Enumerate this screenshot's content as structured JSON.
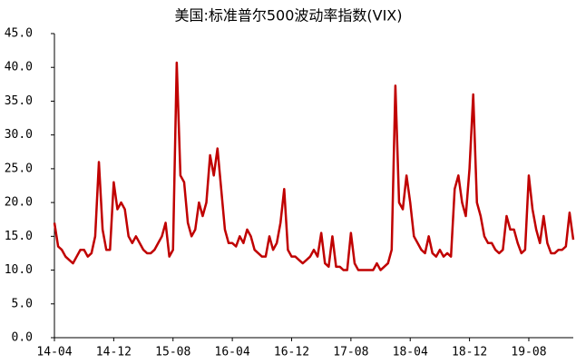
{
  "chart_data": {
    "type": "line",
    "title": "美国:标准普尔500波动率指数(VIX)",
    "categories": [
      "14-04",
      null,
      null,
      null,
      null,
      null,
      null,
      null,
      null,
      null,
      null,
      null,
      null,
      null,
      null,
      null,
      "14-12",
      null,
      null,
      null,
      null,
      null,
      null,
      null,
      null,
      null,
      null,
      null,
      null,
      null,
      null,
      null,
      "15-08",
      null,
      null,
      null,
      null,
      null,
      null,
      null,
      null,
      null,
      null,
      null,
      null,
      null,
      null,
      null,
      "16-04",
      null,
      null,
      null,
      null,
      null,
      null,
      null,
      null,
      null,
      null,
      null,
      null,
      null,
      null,
      null,
      "16-12",
      null,
      null,
      null,
      null,
      null,
      null,
      null,
      null,
      null,
      null,
      null,
      null,
      null,
      null,
      null,
      "17-08",
      null,
      null,
      null,
      null,
      null,
      null,
      null,
      null,
      null,
      null,
      null,
      null,
      null,
      null,
      null,
      "18-04",
      null,
      null,
      null,
      null,
      null,
      null,
      null,
      null,
      null,
      null,
      null,
      null,
      null,
      null,
      null,
      "18-12",
      null,
      null,
      null,
      null,
      null,
      null,
      null,
      null,
      null,
      null,
      null,
      null,
      null,
      null,
      null,
      "19-08",
      null,
      null,
      null,
      null,
      null,
      null,
      null,
      null,
      null,
      null,
      null,
      null
    ],
    "values": [
      17,
      13.5,
      13,
      12,
      11.5,
      11,
      12,
      13,
      13,
      12,
      12.5,
      15,
      26,
      16,
      13,
      13,
      23,
      19,
      20,
      19,
      15,
      14,
      15,
      14,
      13,
      12.5,
      12.5,
      13,
      14,
      15,
      17,
      12,
      13,
      40.7,
      24,
      23,
      17,
      15,
      16,
      20,
      18,
      20,
      27,
      24,
      28,
      22,
      16,
      14,
      14,
      13.5,
      15,
      14,
      16,
      15,
      13,
      12.5,
      12,
      12,
      15,
      13,
      14,
      17,
      22,
      13,
      12,
      12,
      11.5,
      11,
      11.5,
      12,
      13,
      12,
      15.5,
      11,
      10.5,
      15,
      10.5,
      10.5,
      10,
      10,
      15.5,
      11,
      10,
      10,
      10,
      10,
      10,
      11,
      10,
      10.5,
      11,
      13,
      37.3,
      20,
      19,
      24,
      20,
      15,
      14,
      13,
      12.5,
      15,
      12.5,
      12,
      13,
      12,
      12.5,
      12,
      22,
      24,
      20,
      18,
      25,
      36,
      20,
      18,
      15,
      14,
      14,
      13,
      12.5,
      13,
      18,
      16,
      16,
      14,
      12.5,
      13,
      24,
      19,
      16,
      14,
      18,
      14,
      12.5,
      12.5,
      13,
      13,
      13.5,
      18.5,
      14.5
    ],
    "color": "#c00000",
    "ylim": [
      0,
      45
    ],
    "yticks": [
      {
        "value": 0,
        "label": "0.0"
      },
      {
        "value": 5,
        "label": "5.0"
      },
      {
        "value": 10,
        "label": "10.0"
      },
      {
        "value": 15,
        "label": "15.0"
      },
      {
        "value": 20,
        "label": "20.0"
      },
      {
        "value": 25,
        "label": "25.0"
      },
      {
        "value": 30,
        "label": "30.0"
      },
      {
        "value": 35,
        "label": "35.0"
      },
      {
        "value": 40,
        "label": "40.0"
      },
      {
        "value": 45,
        "label": "45.0"
      }
    ],
    "grid": false
  }
}
